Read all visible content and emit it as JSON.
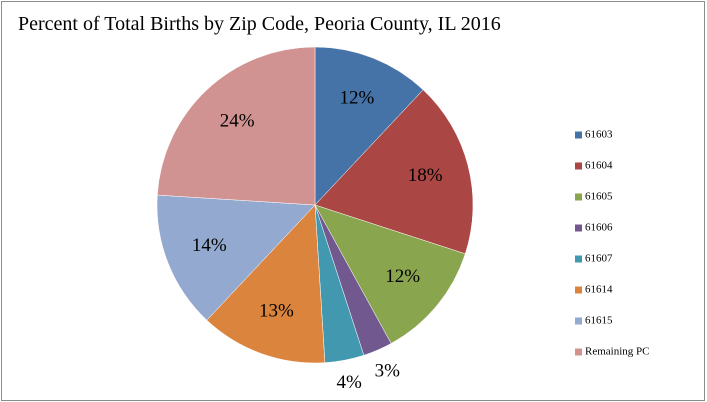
{
  "chart_data": {
    "type": "pie",
    "title": "Percent of Total Births by Zip Code, Peoria County, IL 2016",
    "categories": [
      "61603",
      "61604",
      "61605",
      "61606",
      "61607",
      "61614",
      "61615",
      "Remaining PC"
    ],
    "values": [
      12,
      18,
      12,
      3,
      4,
      13,
      14,
      24
    ],
    "value_labels": [
      "12%",
      "18%",
      "12%",
      "3%",
      "4%",
      "13%",
      "14%",
      "24%"
    ],
    "colors": [
      "#4572a7",
      "#aa4643",
      "#89a54e",
      "#71588f",
      "#4198af",
      "#db843d",
      "#93a9cf",
      "#d19392"
    ],
    "legend": "right"
  }
}
